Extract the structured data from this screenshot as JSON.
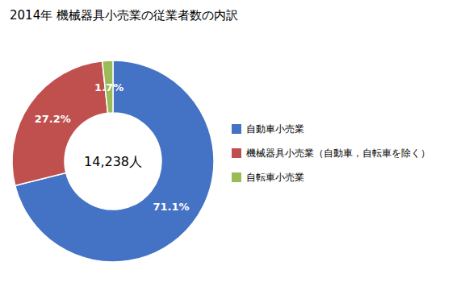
{
  "chart_data": {
    "type": "donut",
    "title": "2014年 機械器具小売業の従業者数の内訳",
    "annotations": [
      "14,238人"
    ],
    "categories": [
      "自動車小売業",
      "機械器具小売業（自動車，自転車を除く）",
      "自転車小売業"
    ],
    "values": [
      71.1,
      27.2,
      1.7
    ],
    "value_labels": [
      "71.1%",
      "27.2%",
      "1.7%"
    ],
    "colors": [
      "#4472C4",
      "#C0504D",
      "#9BBB59"
    ],
    "data_labels": true,
    "legend": "right"
  }
}
